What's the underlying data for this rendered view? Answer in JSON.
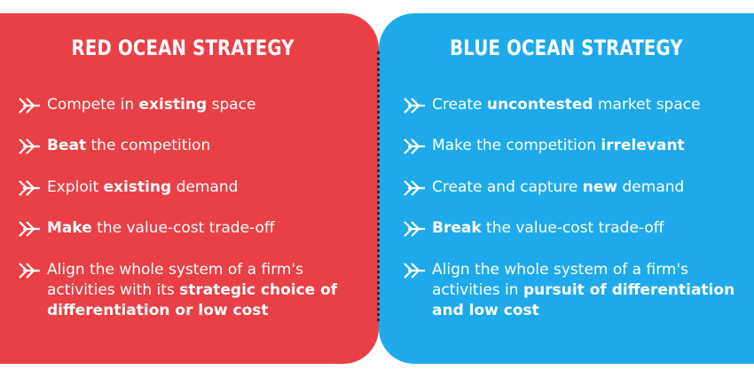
{
  "red": {
    "title": "RED OCEAN STRATEGY",
    "items": [
      {
        "pre": "Compete in ",
        "bold": "existing",
        "post": " space"
      },
      {
        "pre": "",
        "bold": "Beat",
        "post": " the competition"
      },
      {
        "pre": "Exploit ",
        "bold": "existing",
        "post": " demand"
      },
      {
        "pre": "",
        "bold": "Make",
        "post": " the value-cost trade-off"
      },
      {
        "pre": "Align the whole system of a firm's activities with its ",
        "bold": "strategic choice of differentiation or low cost",
        "post": ""
      }
    ]
  },
  "blue": {
    "title": "BLUE OCEAN STRATEGY",
    "items": [
      {
        "pre": "Create ",
        "bold": "uncontested",
        "post": " market space"
      },
      {
        "pre": "Make the competition ",
        "bold": "irrelevant",
        "post": ""
      },
      {
        "pre": "Create and capture ",
        "bold": "new",
        "post": " demand"
      },
      {
        "pre": "",
        "bold": "Break",
        "post": " the value-cost trade-off"
      },
      {
        "pre": "Align the whole system of a firm's activities in ",
        "bold": "pursuit of differentiation and low cost",
        "post": ""
      }
    ]
  },
  "colors": {
    "red_panel": "#e84046",
    "blue_panel": "#1eaaea",
    "text": "#ffffff"
  },
  "icons": {
    "bullet": "double-chevron-arrow-icon"
  }
}
